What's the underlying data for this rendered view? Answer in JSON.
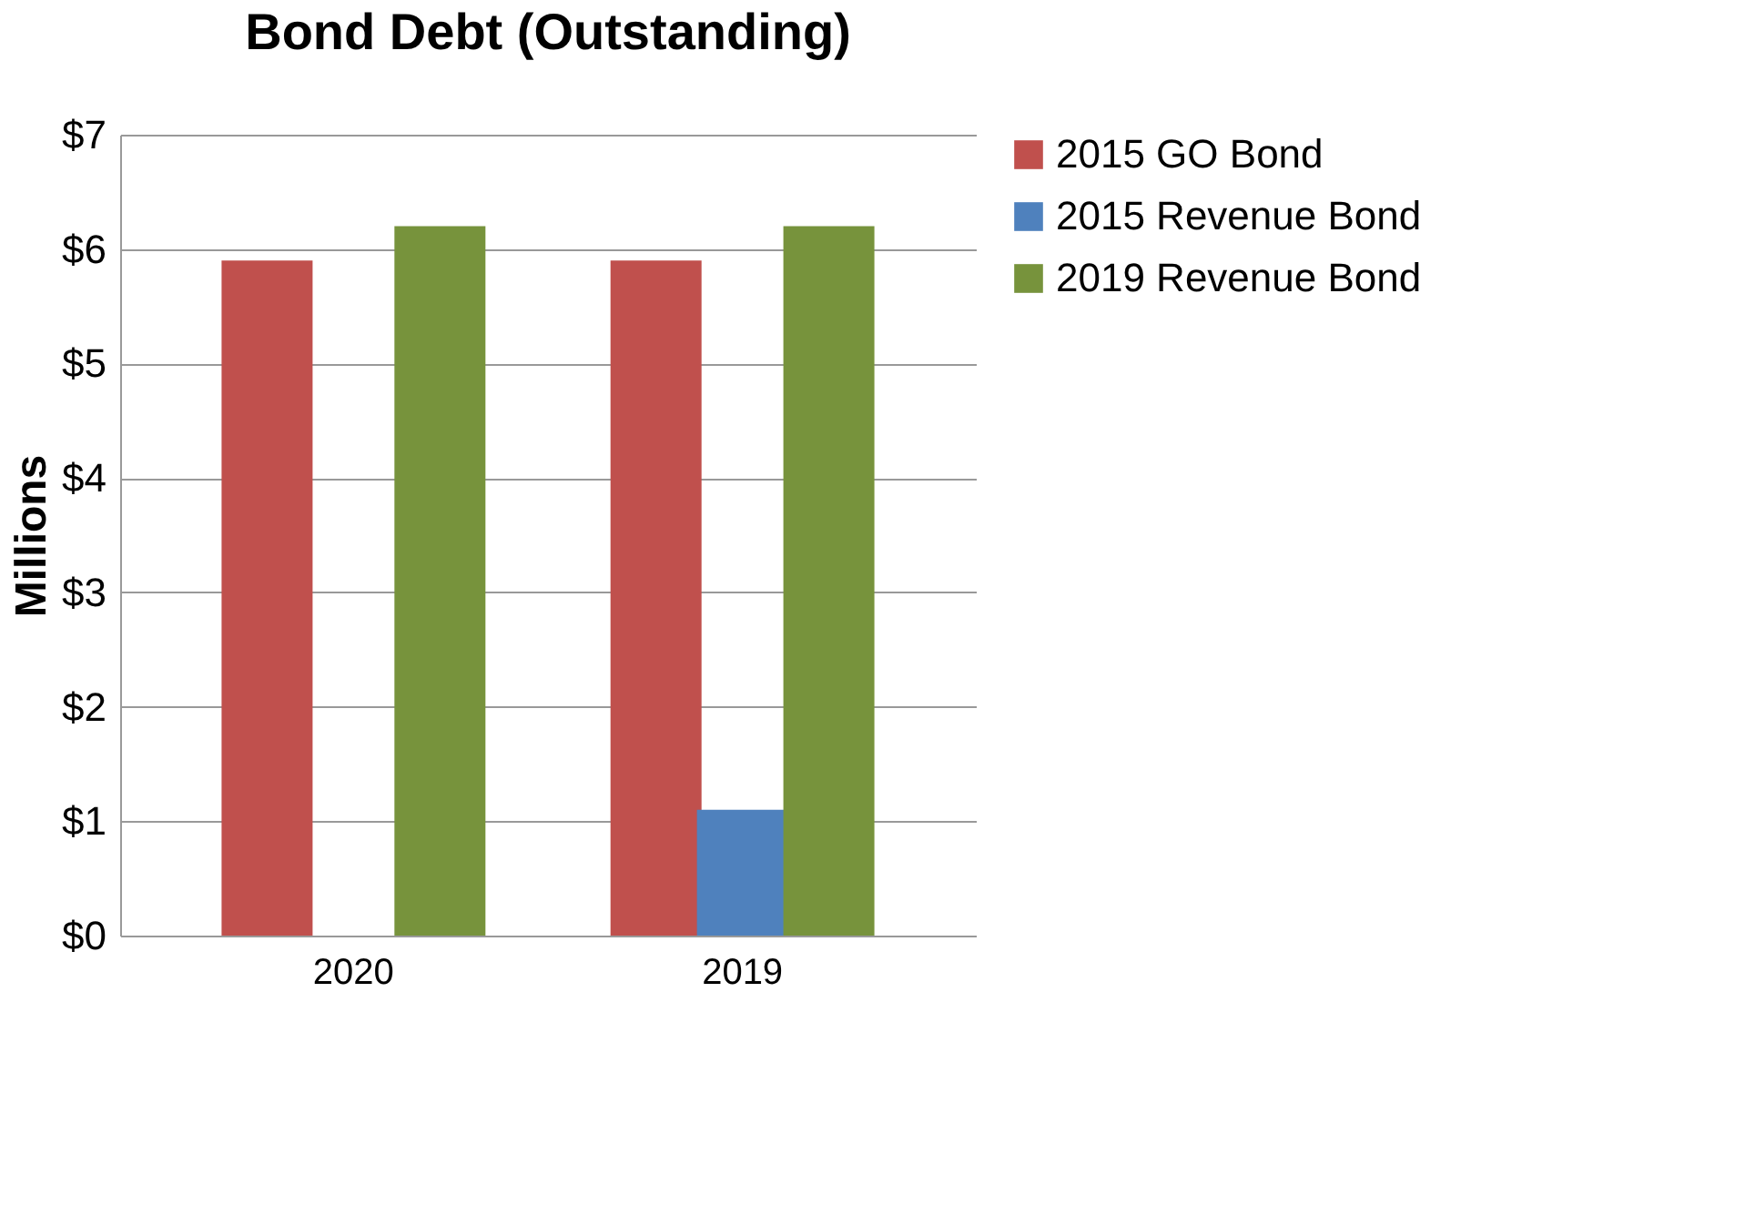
{
  "chart_data": {
    "type": "bar",
    "title": "Bond Debt (Outstanding)",
    "ylabel": "Millions",
    "categories": [
      "2020",
      "2019"
    ],
    "series": [
      {
        "name": "2015 GO Bond",
        "color": "#c0504d",
        "values": [
          5.9,
          5.9
        ]
      },
      {
        "name": "2015 Revenue Bond",
        "color": "#4f81bd",
        "values": [
          0,
          1.1
        ]
      },
      {
        "name": "2019 Revenue Bond",
        "color": "#77933c",
        "values": [
          6.2,
          6.2
        ]
      }
    ],
    "ylim": [
      0,
      7
    ],
    "yticks": [
      {
        "value": 0,
        "label": "$0"
      },
      {
        "value": 1,
        "label": "$1"
      },
      {
        "value": 2,
        "label": "$2"
      },
      {
        "value": 3,
        "label": "$3"
      },
      {
        "value": 4,
        "label": "$4"
      },
      {
        "value": 5,
        "label": "$5"
      },
      {
        "value": 6,
        "label": "$6"
      },
      {
        "value": 7,
        "label": "$7"
      }
    ],
    "grid": "y",
    "legend": "right"
  }
}
